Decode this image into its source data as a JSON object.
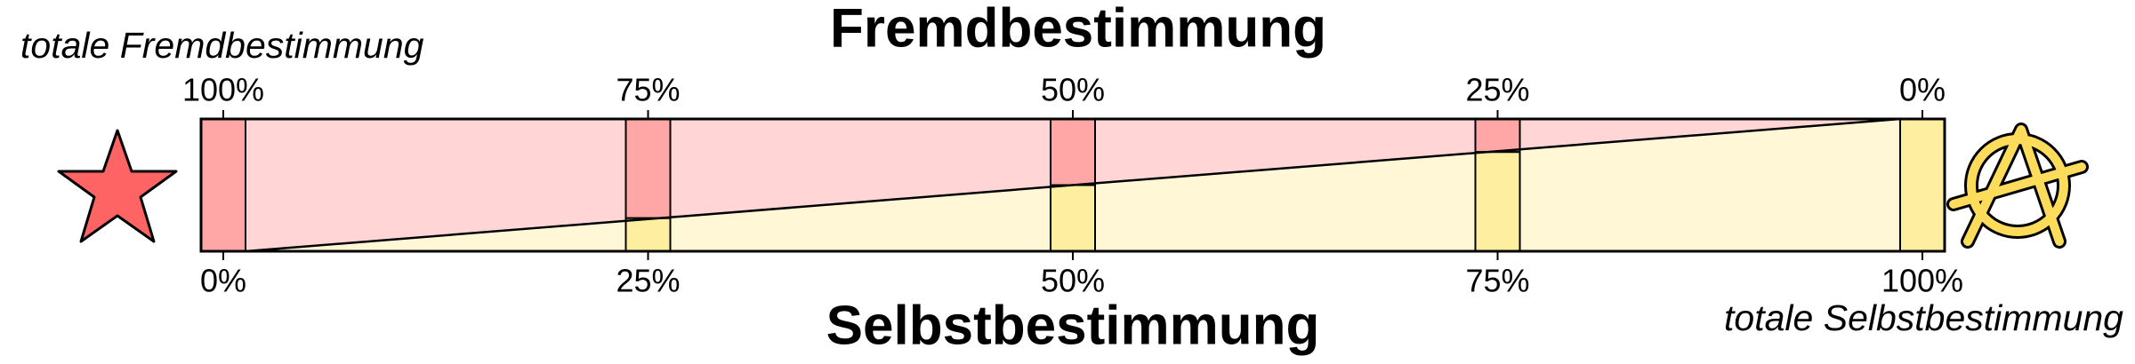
{
  "title_top": "Fremdbestimmung",
  "title_bottom": "Selbstbestimmung",
  "left_label": "totale Fremdbestimmung",
  "right_label": "totale Selbstbestimmung",
  "top_ticks": [
    "100%",
    "75%",
    "50%",
    "25%",
    "0%"
  ],
  "bottom_ticks": [
    "0%",
    "25%",
    "50%",
    "75%",
    "100%"
  ]
}
